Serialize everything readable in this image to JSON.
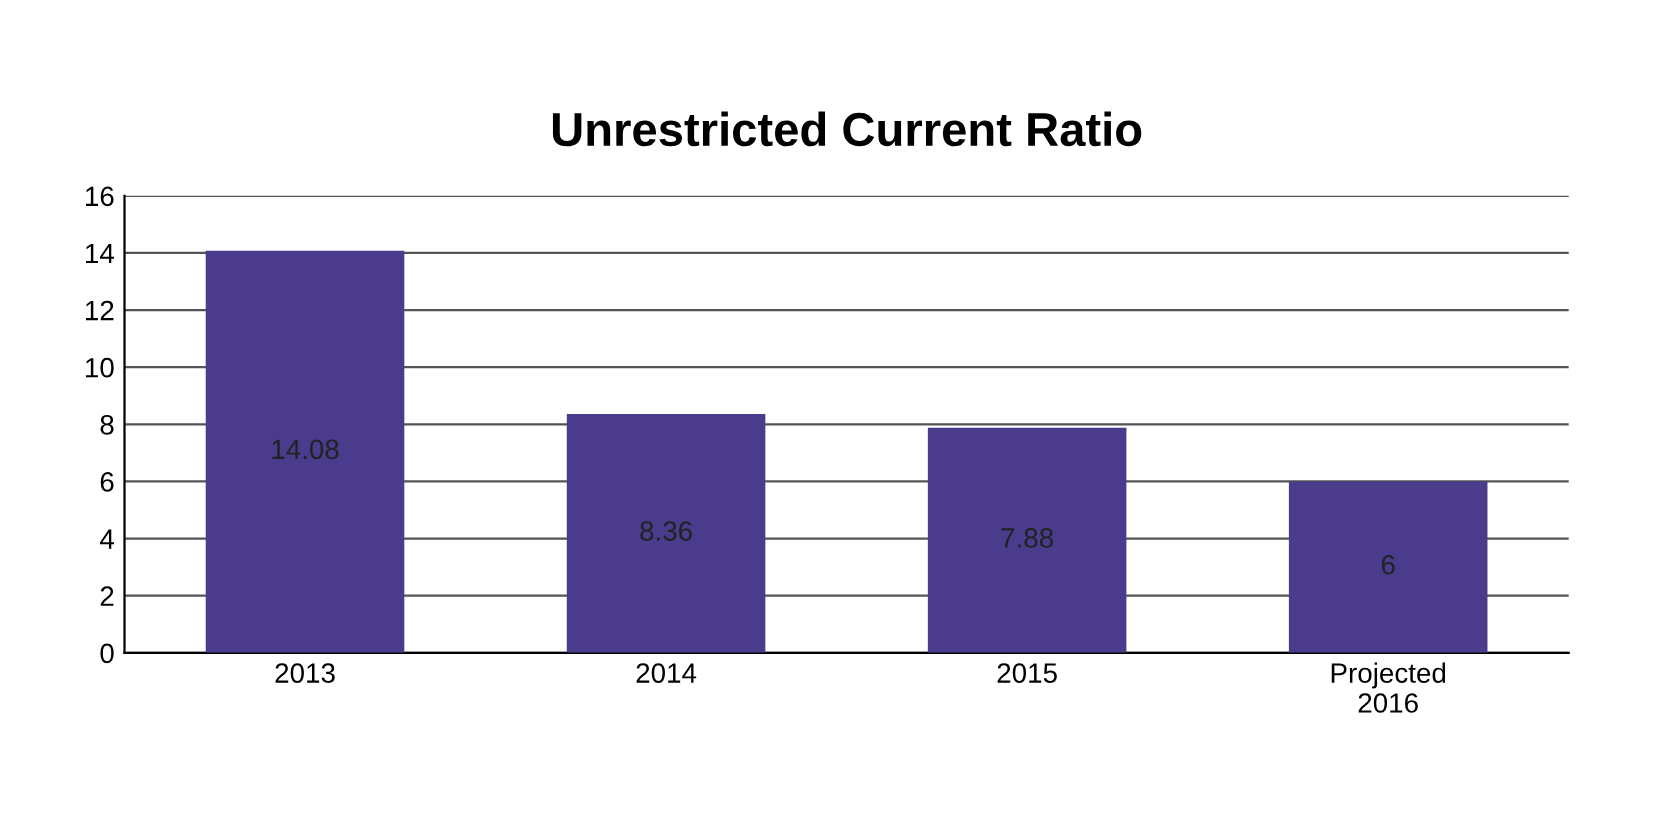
{
  "chart_data": {
    "type": "bar",
    "title": "Unrestricted Current Ratio",
    "categories": [
      "2013",
      "2014",
      "2015",
      "Projected\n2016"
    ],
    "values": [
      14.08,
      8.36,
      7.88,
      6
    ],
    "color": "#4b3b8c",
    "ylim": [
      0,
      16
    ],
    "yticks": [
      0,
      2,
      4,
      6,
      8,
      10,
      12,
      14,
      16
    ],
    "grid": "y",
    "data_labels": true
  }
}
